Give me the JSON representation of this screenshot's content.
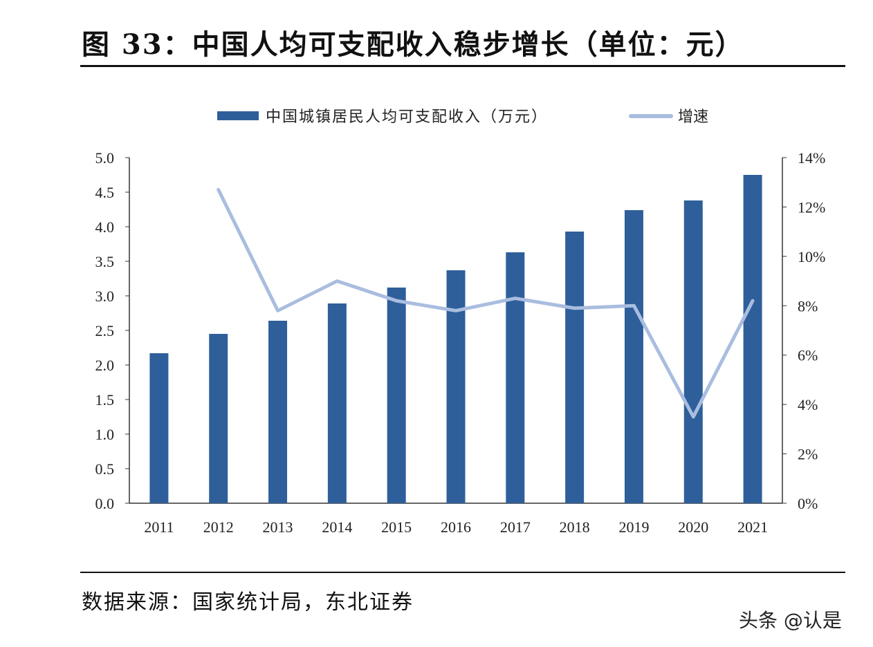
{
  "title": "图 33：中国人均可支配收入稳步增长（单位：元）",
  "source": "数据来源：国家统计局，东北证券",
  "watermark": "头条 @认是",
  "chart_data": {
    "type": "bar+line",
    "categories": [
      "2011",
      "2012",
      "2013",
      "2014",
      "2015",
      "2016",
      "2017",
      "2018",
      "2019",
      "2020",
      "2021"
    ],
    "series": [
      {
        "name": "中国城镇居民人均可支配收入（万元）",
        "type": "bar",
        "axis": "left",
        "color": "#2e5f9a",
        "values": [
          2.17,
          2.45,
          2.64,
          2.89,
          3.12,
          3.37,
          3.63,
          3.93,
          4.24,
          4.38,
          4.75
        ]
      },
      {
        "name": "增速",
        "type": "line",
        "axis": "right",
        "color": "#a9bddf",
        "values": [
          null,
          12.7,
          7.8,
          9.0,
          8.2,
          7.8,
          8.3,
          7.9,
          8.0,
          3.5,
          8.2
        ]
      }
    ],
    "ylim_left": [
      0,
      5
    ],
    "yticks_left": [
      "0.0",
      "0.5",
      "1.0",
      "1.5",
      "2.0",
      "2.5",
      "3.0",
      "3.5",
      "4.0",
      "4.5",
      "5.0"
    ],
    "ylim_right": [
      0,
      14
    ],
    "yticks_right": [
      "0%",
      "2%",
      "4%",
      "6%",
      "8%",
      "10%",
      "12%",
      "14%"
    ],
    "legend_position": "top",
    "grid": false
  }
}
